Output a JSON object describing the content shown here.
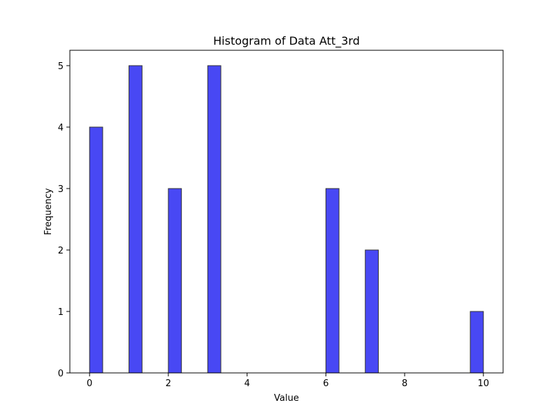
{
  "chart_data": {
    "type": "bar",
    "title": "Histogram of Data Att_3rd",
    "xlabel": "Value",
    "ylabel": "Frequency",
    "bin_count": 30,
    "x_range": [
      0,
      10
    ],
    "xlim": [
      -0.5,
      10.5
    ],
    "ylim": [
      0,
      5.25
    ],
    "xticks": [
      0,
      2,
      4,
      6,
      8,
      10
    ],
    "yticks": [
      0,
      1,
      2,
      3,
      4,
      5
    ],
    "bar_color": "#4848f4",
    "edge_color": "#333333",
    "grid": false,
    "bins": [
      {
        "x_start": 0.0,
        "x_end": 0.3333,
        "count": 4
      },
      {
        "x_start": 1.0,
        "x_end": 1.3333,
        "count": 5
      },
      {
        "x_start": 2.0,
        "x_end": 2.3333,
        "count": 3
      },
      {
        "x_start": 3.0,
        "x_end": 3.3333,
        "count": 5
      },
      {
        "x_start": 6.0,
        "x_end": 6.3333,
        "count": 3
      },
      {
        "x_start": 7.0,
        "x_end": 7.3333,
        "count": 2
      },
      {
        "x_start": 9.6667,
        "x_end": 10.0,
        "count": 1
      }
    ]
  }
}
